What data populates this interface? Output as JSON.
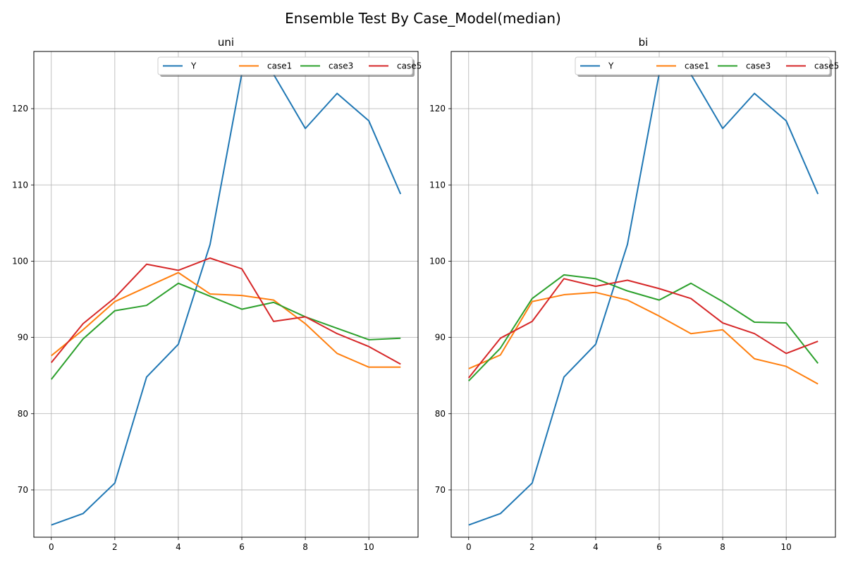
{
  "figure": {
    "suptitle": "Ensemble Test By Case_Model(median)"
  },
  "colors": {
    "Y": "#1f77b4",
    "case1": "#ff7f0e",
    "case3": "#2ca02c",
    "case5": "#d62728",
    "grid": "#b0b0b0"
  },
  "chart_data": [
    {
      "type": "line",
      "title": "uni",
      "xlabel": "",
      "ylabel": "",
      "x": [
        0,
        1,
        2,
        3,
        4,
        5,
        6,
        7,
        8,
        9,
        10,
        11
      ],
      "xlim": [
        -0.55,
        11.55
      ],
      "ylim": [
        63.8,
        127.5
      ],
      "xticks": [
        0,
        2,
        4,
        6,
        8,
        10
      ],
      "yticks": [
        70,
        80,
        90,
        100,
        110,
        120
      ],
      "grid": true,
      "legend": "top-right",
      "series": [
        {
          "name": "Y",
          "color": "#1f77b4",
          "values": [
            65.4,
            66.9,
            70.9,
            84.8,
            89.1,
            102.2,
            124.6,
            124.5,
            117.4,
            122.0,
            118.4,
            108.8
          ]
        },
        {
          "name": "case1",
          "color": "#ff7f0e",
          "values": [
            87.6,
            91.0,
            94.7,
            96.6,
            98.5,
            95.7,
            95.5,
            94.9,
            91.8,
            87.9,
            86.1,
            86.1
          ]
        },
        {
          "name": "case3",
          "color": "#2ca02c",
          "values": [
            84.5,
            89.8,
            93.5,
            94.2,
            97.1,
            95.4,
            93.7,
            94.6,
            92.7,
            91.2,
            89.7,
            89.9
          ]
        },
        {
          "name": "case5",
          "color": "#d62728",
          "values": [
            86.7,
            91.8,
            95.2,
            99.6,
            98.8,
            100.4,
            99.0,
            92.1,
            92.7,
            90.5,
            88.8,
            86.5
          ]
        }
      ]
    },
    {
      "type": "line",
      "title": "bi",
      "xlabel": "",
      "ylabel": "",
      "x": [
        0,
        1,
        2,
        3,
        4,
        5,
        6,
        7,
        8,
        9,
        10,
        11
      ],
      "xlim": [
        -0.55,
        11.55
      ],
      "ylim": [
        63.8,
        127.5
      ],
      "xticks": [
        0,
        2,
        4,
        6,
        8,
        10
      ],
      "yticks": [
        70,
        80,
        90,
        100,
        110,
        120
      ],
      "grid": true,
      "legend": "top-right",
      "series": [
        {
          "name": "Y",
          "color": "#1f77b4",
          "values": [
            65.4,
            66.9,
            70.9,
            84.8,
            89.1,
            102.2,
            124.6,
            124.5,
            117.4,
            122.0,
            118.4,
            108.8
          ]
        },
        {
          "name": "case1",
          "color": "#ff7f0e",
          "values": [
            85.9,
            87.7,
            94.7,
            95.6,
            95.9,
            94.9,
            92.8,
            90.5,
            91.0,
            87.2,
            86.2,
            83.9
          ]
        },
        {
          "name": "case3",
          "color": "#2ca02c",
          "values": [
            84.3,
            88.6,
            95.1,
            98.2,
            97.7,
            96.1,
            94.9,
            97.1,
            94.7,
            92.0,
            91.9,
            86.6
          ]
        },
        {
          "name": "case5",
          "color": "#d62728",
          "values": [
            84.7,
            89.9,
            92.1,
            97.7,
            96.7,
            97.5,
            96.4,
            95.1,
            91.9,
            90.5,
            87.9,
            89.5
          ]
        }
      ]
    }
  ]
}
